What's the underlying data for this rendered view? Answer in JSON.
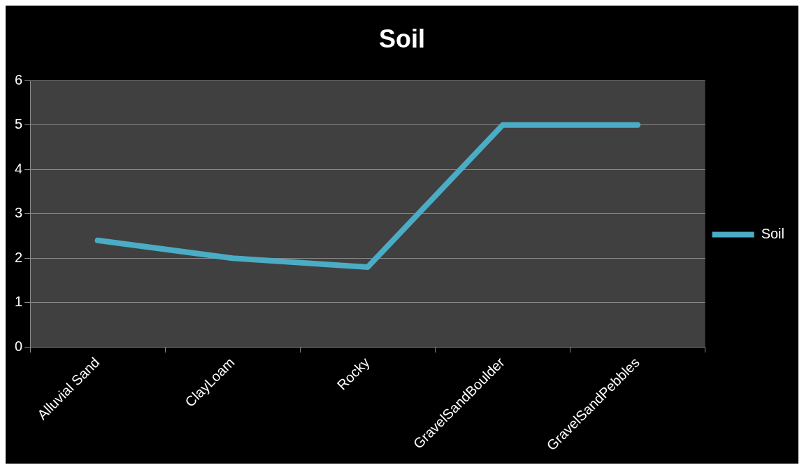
{
  "chart_data": {
    "type": "line",
    "title": "Soil",
    "categories": [
      "Alluvial Sand",
      "ClayLoam",
      "Rocky",
      "GravelSandBoulder",
      "GravelSandPebbles"
    ],
    "series": [
      {
        "name": "Soil",
        "color": "#4bacc6",
        "values": [
          2.4,
          2.0,
          1.8,
          5,
          5
        ]
      }
    ],
    "ylim": [
      0,
      6
    ],
    "yticks": [
      0,
      1,
      2,
      3,
      4,
      5,
      6
    ],
    "grid": "y",
    "legend": "right",
    "marker": "none",
    "line_style": "solid"
  }
}
